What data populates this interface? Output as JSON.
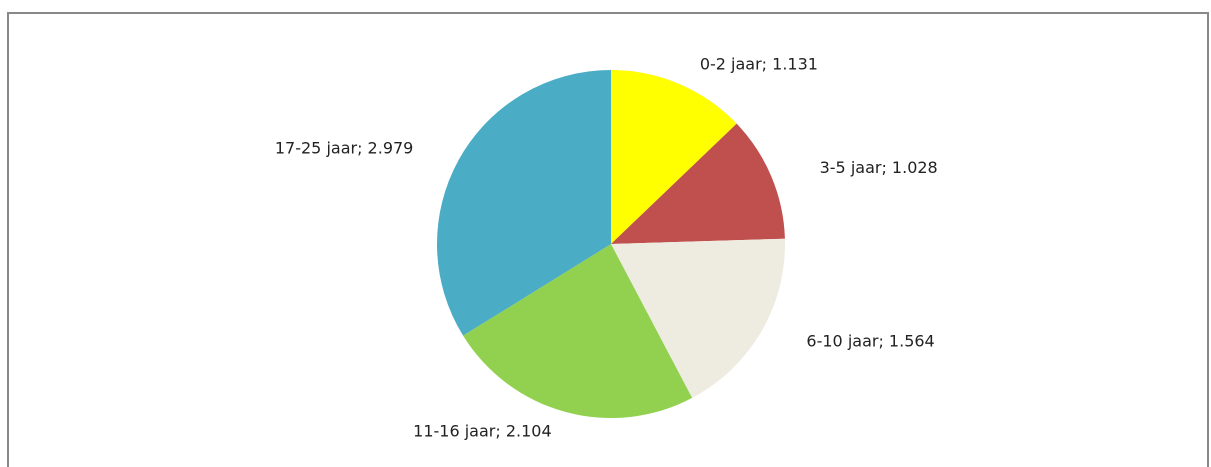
{
  "chart_data": {
    "type": "pie",
    "values": [
      1131,
      1028,
      1564,
      2104,
      2979
    ],
    "value_labels": [
      "0-2 jaar; 1.131",
      "3-5 jaar; 1.028",
      "6-10 jaar; 1.564",
      "11-16 jaar; 2.104",
      "17-25 jaar; 2.979"
    ],
    "colors": [
      "#ffff00",
      "#c0504d",
      "#eeece1",
      "#92d050",
      "#4bacc6"
    ]
  }
}
